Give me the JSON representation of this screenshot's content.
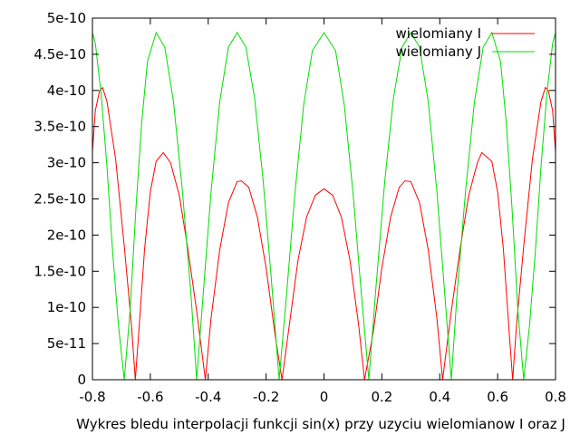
{
  "chart_data": {
    "type": "line",
    "title": "",
    "xlabel": "Wykres bledu interpolacji funkcji sin(x) przy uzyciu wielomianow I oraz J",
    "ylabel": "",
    "xlim": [
      -0.8,
      0.8
    ],
    "ylim": [
      0,
      5e-10
    ],
    "x_ticks": [
      -0.8,
      -0.6,
      -0.4,
      -0.2,
      0,
      0.2,
      0.4,
      0.6,
      0.8
    ],
    "x_tick_labels": [
      "-0.8",
      "-0.6",
      "-0.4",
      "-0.2",
      "0",
      "0.2",
      "0.4",
      "0.6",
      "0.8"
    ],
    "y_ticks": [
      0,
      5e-11,
      1e-10,
      1.5e-10,
      2e-10,
      2.5e-10,
      3e-10,
      3.5e-10,
      4e-10,
      4.5e-10,
      5e-10
    ],
    "y_tick_labels": [
      "0",
      "5e-11",
      "1e-10",
      "1.5e-10",
      "2e-10",
      "2.5e-10",
      "3e-10",
      "3.5e-10",
      "4e-10",
      "4.5e-10",
      "5e-10"
    ],
    "grid": false,
    "legend_position": "top-right",
    "series": [
      {
        "name": "wielomiany I",
        "color": "#ff0000",
        "points": [
          [
            -0.8,
            3.15e-10
          ],
          [
            -0.79,
            3.72e-10
          ],
          [
            -0.775,
            4e-10
          ],
          [
            -0.765,
            4.04e-10
          ],
          [
            -0.75,
            3.85e-10
          ],
          [
            -0.72,
            3.05e-10
          ],
          [
            -0.69,
            1.85e-10
          ],
          [
            -0.665,
            7.5e-11
          ],
          [
            -0.652,
            0.0
          ],
          [
            -0.64,
            6.5e-11
          ],
          [
            -0.62,
            1.8e-10
          ],
          [
            -0.6,
            2.6e-10
          ],
          [
            -0.58,
            3.02e-10
          ],
          [
            -0.555,
            3.14e-10
          ],
          [
            -0.53,
            3e-10
          ],
          [
            -0.5,
            2.55e-10
          ],
          [
            -0.47,
            1.8e-10
          ],
          [
            -0.44,
            9.5e-11
          ],
          [
            -0.41,
            0.0
          ],
          [
            -0.39,
            8.5e-11
          ],
          [
            -0.36,
            1.8e-10
          ],
          [
            -0.33,
            2.45e-10
          ],
          [
            -0.3,
            2.74e-10
          ],
          [
            -0.285,
            2.75e-10
          ],
          [
            -0.26,
            2.66e-10
          ],
          [
            -0.23,
            2.25e-10
          ],
          [
            -0.2,
            1.55e-10
          ],
          [
            -0.17,
            6.5e-11
          ],
          [
            -0.145,
            0.0
          ],
          [
            -0.12,
            7.5e-11
          ],
          [
            -0.09,
            1.65e-10
          ],
          [
            -0.06,
            2.25e-10
          ],
          [
            -0.03,
            2.55e-10
          ],
          [
            0.0,
            2.64e-10
          ],
          [
            0.03,
            2.55e-10
          ],
          [
            0.06,
            2.25e-10
          ],
          [
            0.09,
            1.65e-10
          ],
          [
            0.12,
            7.5e-11
          ],
          [
            0.14,
            0.0
          ],
          [
            0.17,
            6.5e-11
          ],
          [
            0.2,
            1.55e-10
          ],
          [
            0.23,
            2.25e-10
          ],
          [
            0.26,
            2.66e-10
          ],
          [
            0.28,
            2.75e-10
          ],
          [
            0.3,
            2.74e-10
          ],
          [
            0.33,
            2.45e-10
          ],
          [
            0.36,
            1.8e-10
          ],
          [
            0.39,
            8.5e-11
          ],
          [
            0.41,
            0.0
          ],
          [
            0.44,
            9.5e-11
          ],
          [
            0.47,
            1.8e-10
          ],
          [
            0.5,
            2.55e-10
          ],
          [
            0.53,
            3e-10
          ],
          [
            0.545,
            3.14e-10
          ],
          [
            0.58,
            3.02e-10
          ],
          [
            0.6,
            2.6e-10
          ],
          [
            0.62,
            1.8e-10
          ],
          [
            0.64,
            6.5e-11
          ],
          [
            0.652,
            0.0
          ],
          [
            0.665,
            7.5e-11
          ],
          [
            0.69,
            1.85e-10
          ],
          [
            0.72,
            3.05e-10
          ],
          [
            0.75,
            3.85e-10
          ],
          [
            0.765,
            4.04e-10
          ],
          [
            0.775,
            4e-10
          ],
          [
            0.79,
            3.72e-10
          ],
          [
            0.8,
            3.15e-10
          ]
        ]
      },
      {
        "name": "wielomiany J",
        "color": "#00dd00",
        "points": [
          [
            -0.8,
            4.8e-10
          ],
          [
            -0.79,
            4.65e-10
          ],
          [
            -0.77,
            3.95e-10
          ],
          [
            -0.75,
            2.95e-10
          ],
          [
            -0.73,
            1.75e-10
          ],
          [
            -0.71,
            7.5e-11
          ],
          [
            -0.69,
            0.0
          ],
          [
            -0.67,
            9.5e-11
          ],
          [
            -0.65,
            2.35e-10
          ],
          [
            -0.63,
            3.55e-10
          ],
          [
            -0.61,
            4.4e-10
          ],
          [
            -0.58,
            4.8e-10
          ],
          [
            -0.55,
            4.6e-10
          ],
          [
            -0.52,
            3.85e-10
          ],
          [
            -0.49,
            2.65e-10
          ],
          [
            -0.46,
            1.2e-10
          ],
          [
            -0.44,
            0.0
          ],
          [
            -0.42,
            1.05e-10
          ],
          [
            -0.39,
            2.6e-10
          ],
          [
            -0.36,
            3.85e-10
          ],
          [
            -0.33,
            4.6e-10
          ],
          [
            -0.3,
            4.8e-10
          ],
          [
            -0.27,
            4.6e-10
          ],
          [
            -0.24,
            3.9e-10
          ],
          [
            -0.21,
            2.75e-10
          ],
          [
            -0.18,
            1.3e-10
          ],
          [
            -0.155,
            0.0
          ],
          [
            -0.13,
            1.15e-10
          ],
          [
            -0.1,
            2.6e-10
          ],
          [
            -0.07,
            3.8e-10
          ],
          [
            -0.04,
            4.55e-10
          ],
          [
            0.0,
            4.8e-10
          ],
          [
            0.04,
            4.55e-10
          ],
          [
            0.07,
            3.8e-10
          ],
          [
            0.1,
            2.6e-10
          ],
          [
            0.13,
            1.15e-10
          ],
          [
            0.155,
            0.0
          ],
          [
            0.18,
            1.3e-10
          ],
          [
            0.21,
            2.75e-10
          ],
          [
            0.24,
            3.9e-10
          ],
          [
            0.27,
            4.6e-10
          ],
          [
            0.3,
            4.8e-10
          ],
          [
            0.33,
            4.6e-10
          ],
          [
            0.36,
            3.85e-10
          ],
          [
            0.39,
            2.6e-10
          ],
          [
            0.42,
            1.05e-10
          ],
          [
            0.44,
            0.0
          ],
          [
            0.46,
            1.2e-10
          ],
          [
            0.49,
            2.65e-10
          ],
          [
            0.52,
            3.85e-10
          ],
          [
            0.55,
            4.6e-10
          ],
          [
            0.58,
            4.8e-10
          ],
          [
            0.61,
            4.4e-10
          ],
          [
            0.63,
            3.55e-10
          ],
          [
            0.65,
            2.35e-10
          ],
          [
            0.67,
            9.5e-11
          ],
          [
            0.69,
            0.0
          ],
          [
            0.71,
            7.5e-11
          ],
          [
            0.73,
            1.75e-10
          ],
          [
            0.75,
            2.95e-10
          ],
          [
            0.77,
            3.95e-10
          ],
          [
            0.79,
            4.65e-10
          ],
          [
            0.8,
            4.8e-10
          ]
        ]
      }
    ]
  }
}
